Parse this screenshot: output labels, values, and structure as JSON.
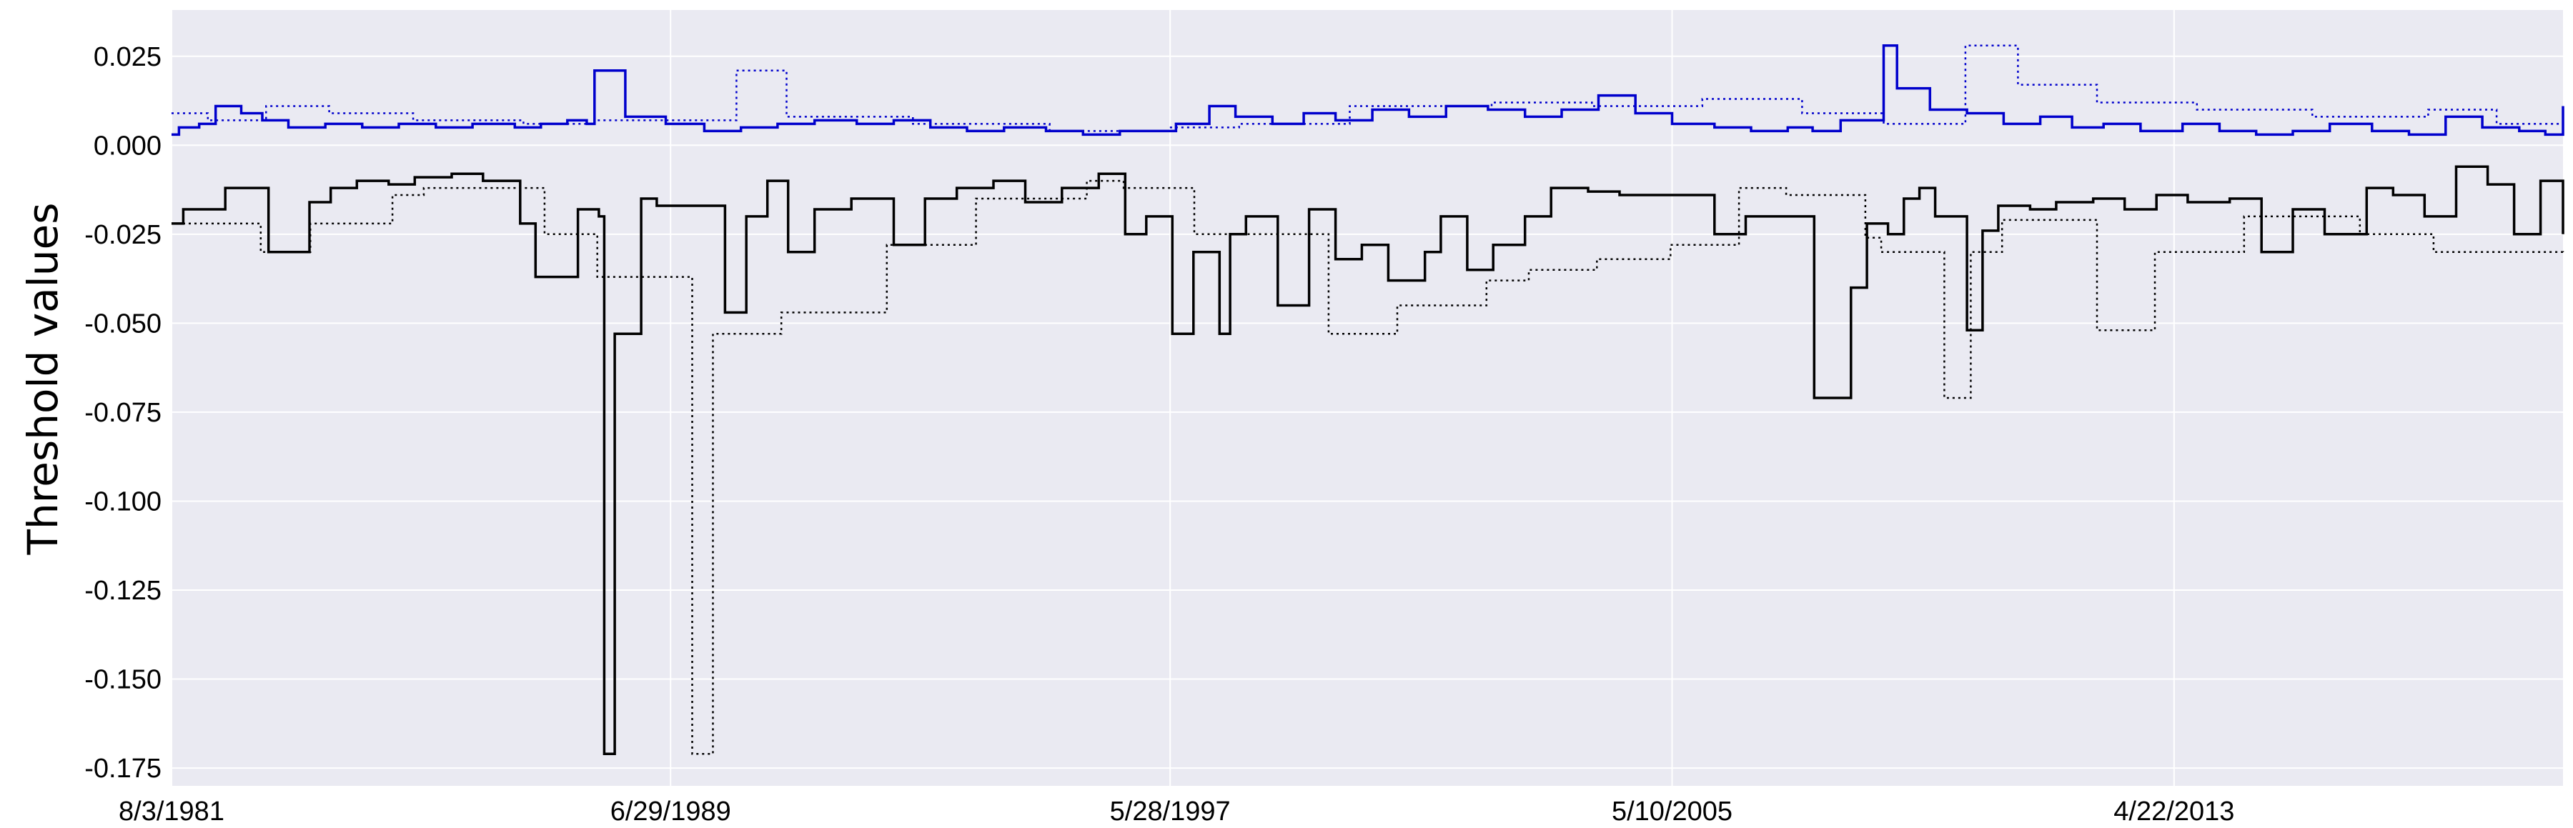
{
  "chart_data": {
    "type": "line",
    "title": "",
    "xlabel": "",
    "ylabel": "Threshold values",
    "ylim": [
      -0.18,
      0.038
    ],
    "xlim": [
      "1981-08-03",
      "2019-06-20"
    ],
    "grid": true,
    "legend": "none",
    "y_ticks": [
      0.025,
      0.0,
      -0.025,
      -0.05,
      -0.075,
      -0.1,
      -0.125,
      -0.15,
      -0.175
    ],
    "y_tick_labels": [
      "0.025",
      "0.000",
      "-0.025",
      "-0.050",
      "-0.075",
      "-0.100",
      "-0.125",
      "-0.150",
      "-0.175"
    ],
    "x_ticks": [
      "1981-08-03",
      "1989-06-29",
      "1997-05-28",
      "2005-05-10",
      "2013-04-22"
    ],
    "x_tick_labels": [
      "8/3/1981",
      "6/29/1989",
      "5/28/1997",
      "5/10/2005",
      "4/22/2013"
    ],
    "colors": {
      "upper": "#0000cc",
      "lower": "#000000",
      "plot_background": "#eaeaf2",
      "grid": "#ffffff"
    },
    "series": [
      {
        "color": "#0000cc",
        "style": "solid",
        "x": [
          "1981-08-03",
          "1981-09-15",
          "1982-01-10",
          "1982-04-15",
          "1982-09-10",
          "1983-01-10",
          "1983-06-10",
          "1984-01-10",
          "1984-08-10",
          "1985-03-10",
          "1985-10-10",
          "1986-05-10",
          "1987-01-10",
          "1987-06-10",
          "1987-11-10",
          "1988-03-01",
          "1988-04-15",
          "1988-10-10",
          "1989-06-01",
          "1990-01-10",
          "1990-08-10",
          "1991-03-10",
          "1991-10-10",
          "1992-06-10",
          "1993-01-10",
          "1993-08-10",
          "1994-03-10",
          "1994-10-10",
          "1995-06-10",
          "1996-01-10",
          "1996-08-10",
          "1997-01-10",
          "1997-07-01",
          "1998-01-10",
          "1998-06-10",
          "1999-01-10",
          "1999-07-10",
          "2000-01-10",
          "2000-08-10",
          "2001-03-10",
          "2001-10-10",
          "2002-06-10",
          "2003-01-10",
          "2003-08-10",
          "2004-03-10",
          "2004-10-10",
          "2005-05-10",
          "2006-01-10",
          "2006-08-10",
          "2007-03-10",
          "2007-08-01",
          "2008-01-10",
          "2008-09-15",
          "2008-12-01",
          "2009-06-10",
          "2010-01-10",
          "2010-08-10",
          "2011-03-10",
          "2011-09-10",
          "2012-03-10",
          "2012-10-10",
          "2013-06-10",
          "2014-01-10",
          "2014-08-10",
          "2015-03-10",
          "2015-10-10",
          "2016-06-10",
          "2017-01-10",
          "2017-08-10",
          "2018-03-10",
          "2018-10-10",
          "2019-03-10",
          "2019-06-20"
        ],
        "values": [
          0.003,
          0.005,
          0.006,
          0.011,
          0.009,
          0.007,
          0.005,
          0.006,
          0.005,
          0.006,
          0.005,
          0.006,
          0.005,
          0.006,
          0.007,
          0.006,
          0.021,
          0.008,
          0.006,
          0.004,
          0.005,
          0.006,
          0.007,
          0.006,
          0.007,
          0.005,
          0.004,
          0.005,
          0.004,
          0.003,
          0.004,
          0.004,
          0.006,
          0.011,
          0.008,
          0.006,
          0.009,
          0.007,
          0.01,
          0.008,
          0.011,
          0.01,
          0.008,
          0.01,
          0.014,
          0.009,
          0.006,
          0.005,
          0.004,
          0.005,
          0.004,
          0.007,
          0.028,
          0.016,
          0.01,
          0.009,
          0.006,
          0.008,
          0.005,
          0.006,
          0.004,
          0.006,
          0.004,
          0.003,
          0.004,
          0.006,
          0.004,
          0.003,
          0.008,
          0.005,
          0.004,
          0.003,
          0.011
        ]
      },
      {
        "color": "#0000cc",
        "style": "dotted",
        "x": [
          "1981-08-03",
          "1982-03-01",
          "1983-02-01",
          "1984-02-01",
          "1985-06-01",
          "1987-03-01",
          "1988-04-15",
          "1990-07-15",
          "1991-05-01",
          "1993-05-01",
          "1995-07-01",
          "1997-06-01",
          "1998-07-01",
          "2000-04-01",
          "2002-07-01",
          "2004-02-01",
          "2005-11-01",
          "2007-06-01",
          "2008-09-15",
          "2010-01-01",
          "2010-11-01",
          "2012-02-01",
          "2013-09-01",
          "2015-07-01",
          "2017-05-01",
          "2018-06-01",
          "2019-06-20"
        ],
        "values": [
          0.009,
          0.007,
          0.011,
          0.009,
          0.007,
          0.006,
          0.007,
          0.021,
          0.008,
          0.006,
          0.004,
          0.005,
          0.006,
          0.011,
          0.012,
          0.011,
          0.013,
          0.009,
          0.006,
          0.028,
          0.017,
          0.012,
          0.01,
          0.008,
          0.01,
          0.006,
          0.005
        ]
      },
      {
        "color": "#000000",
        "style": "solid",
        "x": [
          "1981-08-03",
          "1981-10-10",
          "1982-06-10",
          "1983-02-15",
          "1983-10-10",
          "1984-02-10",
          "1984-07-10",
          "1985-01-10",
          "1985-06-10",
          "1986-01-10",
          "1986-07-10",
          "1987-02-10",
          "1987-05-10",
          "1988-01-10",
          "1988-05-10",
          "1988-06-10",
          "1988-08-10",
          "1989-01-10",
          "1989-04-10",
          "1990-05-10",
          "1990-09-10",
          "1991-01-10",
          "1991-05-10",
          "1991-10-10",
          "1992-05-10",
          "1993-01-10",
          "1993-07-10",
          "1994-01-10",
          "1994-08-10",
          "1995-02-10",
          "1995-09-10",
          "1996-04-10",
          "1996-09-10",
          "1997-01-10",
          "1997-06-10",
          "1997-10-10",
          "1998-03-10",
          "1998-05-10",
          "1998-08-10",
          "1999-02-10",
          "1999-08-10",
          "2000-01-10",
          "2000-06-10",
          "2000-11-10",
          "2001-06-10",
          "2001-09-10",
          "2002-02-10",
          "2002-07-10",
          "2003-01-10",
          "2003-06-10",
          "2004-01-10",
          "2004-07-10",
          "2005-01-10",
          "2006-01-10",
          "2006-07-10",
          "2007-03-10",
          "2007-08-10",
          "2008-03-10",
          "2008-06-10",
          "2008-10-10",
          "2009-01-10",
          "2009-04-10",
          "2009-07-10",
          "2010-01-10",
          "2010-04-10",
          "2010-07-10",
          "2011-01-10",
          "2011-06-10",
          "2012-01-10",
          "2012-07-10",
          "2013-01-10",
          "2013-07-10",
          "2014-03-10",
          "2014-09-10",
          "2015-03-10",
          "2015-09-10",
          "2016-05-10",
          "2016-10-10",
          "2017-04-10",
          "2017-10-10",
          "2018-04-10",
          "2018-09-10",
          "2019-02-10",
          "2019-06-20"
        ],
        "values": [
          -0.022,
          -0.018,
          -0.012,
          -0.03,
          -0.016,
          -0.012,
          -0.01,
          -0.011,
          -0.009,
          -0.008,
          -0.01,
          -0.022,
          -0.037,
          -0.018,
          -0.02,
          -0.171,
          -0.053,
          -0.015,
          -0.017,
          -0.047,
          -0.02,
          -0.01,
          -0.03,
          -0.018,
          -0.015,
          -0.028,
          -0.015,
          -0.012,
          -0.01,
          -0.016,
          -0.012,
          -0.008,
          -0.025,
          -0.02,
          -0.053,
          -0.03,
          -0.053,
          -0.025,
          -0.02,
          -0.045,
          -0.018,
          -0.032,
          -0.028,
          -0.038,
          -0.03,
          -0.02,
          -0.035,
          -0.028,
          -0.02,
          -0.012,
          -0.013,
          -0.014,
          -0.014,
          -0.025,
          -0.02,
          -0.02,
          -0.071,
          -0.04,
          -0.022,
          -0.025,
          -0.015,
          -0.012,
          -0.02,
          -0.052,
          -0.024,
          -0.017,
          -0.018,
          -0.016,
          -0.015,
          -0.018,
          -0.014,
          -0.016,
          -0.015,
          -0.03,
          -0.018,
          -0.025,
          -0.012,
          -0.014,
          -0.02,
          -0.006,
          -0.011,
          -0.025,
          -0.01,
          -0.025
        ]
      },
      {
        "color": "#000000",
        "style": "dotted",
        "x": [
          "1981-08-03",
          "1983-01-01",
          "1983-10-15",
          "1985-02-01",
          "1985-08-01",
          "1987-07-01",
          "1988-05-01",
          "1989-11-01",
          "1990-03-01",
          "1991-04-01",
          "1992-12-01",
          "1994-05-01",
          "1996-02-01",
          "1996-09-01",
          "1997-10-15",
          "1999-12-01",
          "2001-01-01",
          "2002-06-01",
          "2003-02-01",
          "2004-03-01",
          "2005-05-01",
          "2006-06-01",
          "2007-03-01",
          "2008-06-01",
          "2008-09-01",
          "2009-09-01",
          "2010-02-01",
          "2010-08-01",
          "2012-02-01",
          "2013-01-01",
          "2014-06-01",
          "2016-04-01",
          "2017-06-01",
          "2019-06-20"
        ],
        "values": [
          -0.022,
          -0.03,
          -0.022,
          -0.014,
          -0.012,
          -0.025,
          -0.037,
          -0.171,
          -0.053,
          -0.047,
          -0.028,
          -0.015,
          -0.01,
          -0.012,
          -0.025,
          -0.053,
          -0.045,
          -0.038,
          -0.035,
          -0.032,
          -0.028,
          -0.012,
          -0.014,
          -0.026,
          -0.03,
          -0.071,
          -0.03,
          -0.021,
          -0.052,
          -0.03,
          -0.02,
          -0.025,
          -0.03,
          -0.031
        ]
      }
    ]
  }
}
